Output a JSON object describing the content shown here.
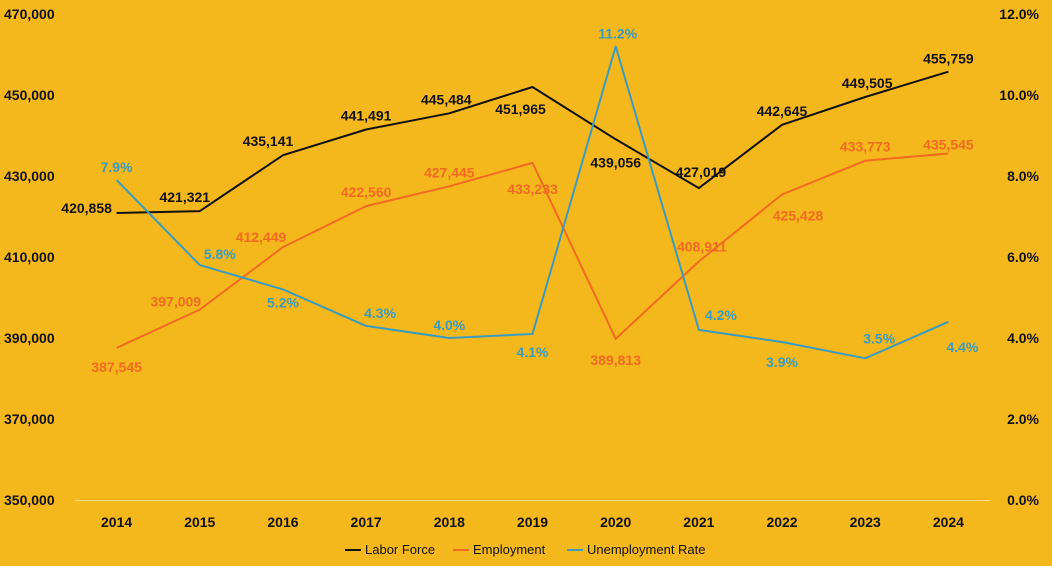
{
  "chart_data": {
    "type": "line",
    "title": "",
    "xlabel": "",
    "ylabel": "",
    "categories": [
      "2014",
      "2015",
      "2016",
      "2017",
      "2018",
      "2019",
      "2020",
      "2021",
      "2022",
      "2023",
      "2024"
    ],
    "ylim": [
      350000,
      470000
    ],
    "y2lim": [
      0,
      12
    ],
    "yticks": [
      "350,000",
      "370,000",
      "390,000",
      "410,000",
      "430,000",
      "450,000",
      "470,000"
    ],
    "y2ticks": [
      "0.0%",
      "2.0%",
      "4.0%",
      "6.0%",
      "8.0%",
      "10.0%",
      "12.0%"
    ],
    "grid": false,
    "legend_position": "bottom",
    "series": [
      {
        "name": "Labor Force",
        "axis": "left",
        "color": "#111111",
        "values": [
          420858,
          421321,
          435141,
          441491,
          445484,
          451965,
          439056,
          427019,
          442645,
          449505,
          455759
        ],
        "labels": [
          "420,858",
          "421,321",
          "435,141",
          "441,491",
          "445,484",
          "451,965",
          "439,056",
          "427,019",
          "442,645",
          "449,505",
          "455,759"
        ]
      },
      {
        "name": "Employment",
        "axis": "left",
        "color": "#F26A21",
        "values": [
          387545,
          397009,
          412449,
          422560,
          427445,
          433233,
          389813,
          408911,
          425428,
          433773,
          435545
        ],
        "labels": [
          "387,545",
          "397,009",
          "412,449",
          "422,560",
          "427,445",
          "433,233",
          "389,813",
          "408,911",
          "425,428",
          "433,773",
          "435,545"
        ]
      },
      {
        "name": "Unemployment Rate",
        "axis": "right",
        "color": "#3A9BC0",
        "values": [
          7.9,
          5.8,
          5.2,
          4.3,
          4.0,
          4.1,
          11.2,
          4.2,
          3.9,
          3.5,
          4.4
        ],
        "labels": [
          "7.9%",
          "5.8%",
          "5.2%",
          "4.3%",
          "4.0%",
          "4.1%",
          "11.2%",
          "4.2%",
          "3.9%",
          "3.5%",
          "4.4%"
        ]
      }
    ]
  }
}
